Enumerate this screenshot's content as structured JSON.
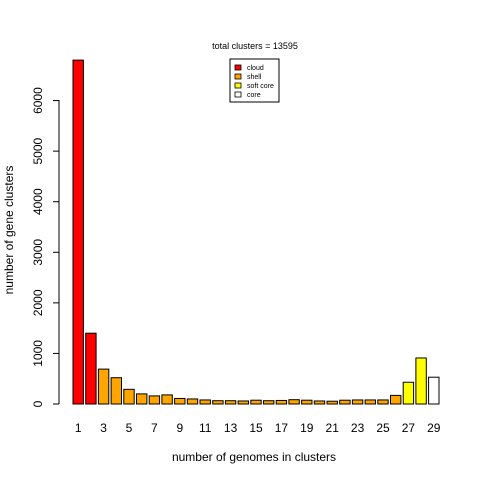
{
  "chart_data": {
    "type": "bar",
    "title": "total clusters = 13595",
    "xlabel": "number of genomes in clusters",
    "ylabel": "number of gene clusters",
    "ylim": [
      0,
      7000
    ],
    "yticks": [
      0,
      1000,
      2000,
      3000,
      4000,
      5000,
      6000
    ],
    "categories": [
      1,
      2,
      3,
      4,
      5,
      6,
      7,
      8,
      9,
      10,
      11,
      12,
      13,
      14,
      15,
      16,
      17,
      18,
      19,
      20,
      21,
      22,
      23,
      24,
      25,
      26,
      27,
      28,
      29
    ],
    "shown_xtick_labels": [
      "1",
      "3",
      "5",
      "7",
      "9",
      "11",
      "13",
      "15",
      "17",
      "19",
      "21",
      "23",
      "25",
      "27",
      "29"
    ],
    "values": [
      6800,
      1400,
      690,
      520,
      290,
      200,
      160,
      180,
      110,
      100,
      80,
      65,
      65,
      60,
      75,
      65,
      70,
      85,
      75,
      60,
      55,
      75,
      80,
      80,
      80,
      170,
      430,
      910,
      530
    ],
    "bar_groups": [
      "cloud",
      "cloud",
      "shell",
      "shell",
      "shell",
      "shell",
      "shell",
      "shell",
      "shell",
      "shell",
      "shell",
      "shell",
      "shell",
      "shell",
      "shell",
      "shell",
      "shell",
      "shell",
      "shell",
      "shell",
      "shell",
      "shell",
      "shell",
      "shell",
      "shell",
      "shell",
      "soft core",
      "soft core",
      "core"
    ],
    "legend": {
      "placement": "top-center",
      "entries": [
        {
          "label": "cloud",
          "color": "#ff0000"
        },
        {
          "label": "shell",
          "color": "#ffa500"
        },
        {
          "label": "soft core",
          "color": "#ffff00"
        },
        {
          "label": "core",
          "color": "#ffffff"
        }
      ]
    },
    "grid": false
  }
}
